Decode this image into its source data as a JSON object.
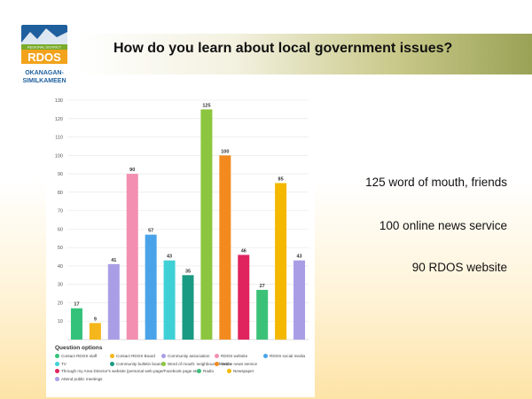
{
  "slide": {
    "title": "How do you learn about local government issues?",
    "summary": [
      "125 word of mouth, friends",
      "100 online news service",
      "90 RDOS website"
    ]
  },
  "logo": {
    "line1": "REGIONAL DISTRICT",
    "brand": "RDOS",
    "line2": "OKANAGAN-",
    "line3": "SIMILKAMEEN",
    "colors": {
      "blue": "#1f5f9e",
      "green": "#7aab2b",
      "orange": "#f2a31b"
    }
  },
  "chart_data": {
    "type": "bar",
    "legend_title": "Question options",
    "ylim": [
      0,
      130
    ],
    "yticks": [
      10,
      20,
      30,
      40,
      50,
      60,
      70,
      80,
      90,
      100,
      110,
      120,
      130
    ],
    "grid": true,
    "series": [
      {
        "name": "Contact RDOS staff",
        "value": 17,
        "color": "#34c27a"
      },
      {
        "name": "Contact RDOS Board",
        "value": 9,
        "color": "#f5b61b"
      },
      {
        "name": "Community association",
        "value": 41,
        "color": "#a99ee6"
      },
      {
        "name": "RDOS website",
        "value": 90,
        "color": "#f38fb0"
      },
      {
        "name": "RDOS social media",
        "value": 57,
        "color": "#4aa3e8"
      },
      {
        "name": "TV",
        "value": 43,
        "color": "#3fd0d6"
      },
      {
        "name": "Community bulletin board",
        "value": 35,
        "color": "#1a9a82"
      },
      {
        "name": "Word of mouth: neighbours, friends",
        "value": 125,
        "color": "#8cc63f"
      },
      {
        "name": "Online news service",
        "value": 100,
        "color": "#f28a1e"
      },
      {
        "name": "Through my Area Director's website (personal web page/Facebook page etc)",
        "value": 46,
        "color": "#e0245e"
      },
      {
        "name": "Radio",
        "value": 27,
        "color": "#3cc178"
      },
      {
        "name": "Newspaper",
        "value": 85,
        "color": "#f4b800"
      },
      {
        "name": "Attend public meetings",
        "value": 43,
        "color": "#a99ee6"
      }
    ]
  }
}
